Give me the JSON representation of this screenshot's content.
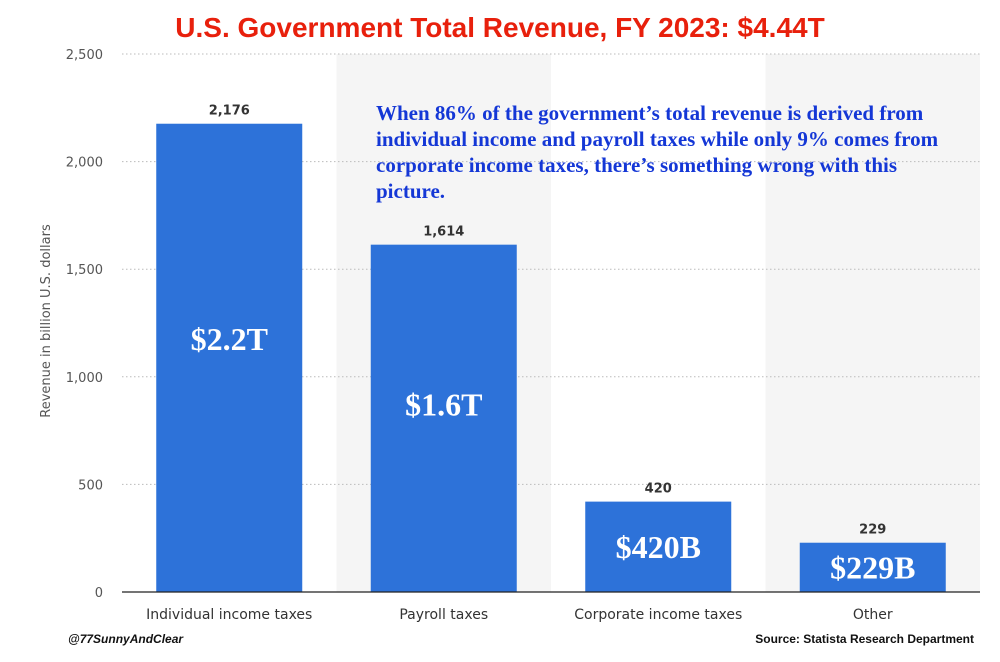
{
  "colors": {
    "title": "#e8200c",
    "annotation": "#1437d6",
    "bar": "#2d72d9",
    "band": "#f5f5f5",
    "grid": "#bbbbbb",
    "axis": "#222222"
  },
  "chart_data": {
    "type": "bar",
    "title": "U.S. Government Total Revenue, FY 2023:  $4.44T",
    "annotation": "When 86% of the government’s total revenue is derived from individual income and payroll taxes while only 9% comes from corporate income taxes, there’s something wrong with this picture.",
    "categories": [
      "Individual income taxes",
      "Payroll taxes",
      "Corporate income taxes",
      "Other"
    ],
    "values": [
      2176,
      1614,
      420,
      229
    ],
    "data_labels": [
      "2,176",
      "1,614",
      "420",
      "229"
    ],
    "bar_labels": [
      "$2.2T",
      "$1.6T",
      "$420B",
      "$229B"
    ],
    "xlabel": "",
    "ylabel": "Revenue in billion U.S. dollars",
    "ylim": [
      0,
      2500
    ],
    "yticks": [
      0,
      500,
      1000,
      1500,
      2000,
      2500
    ],
    "ytick_labels": [
      "0",
      "500",
      "1,000",
      "1,500",
      "2,000",
      "2,500"
    ],
    "grid": true,
    "legend": "none"
  },
  "footer": {
    "credit": "@77SunnyAndClear",
    "source": "Source:  Statista Research Department"
  }
}
